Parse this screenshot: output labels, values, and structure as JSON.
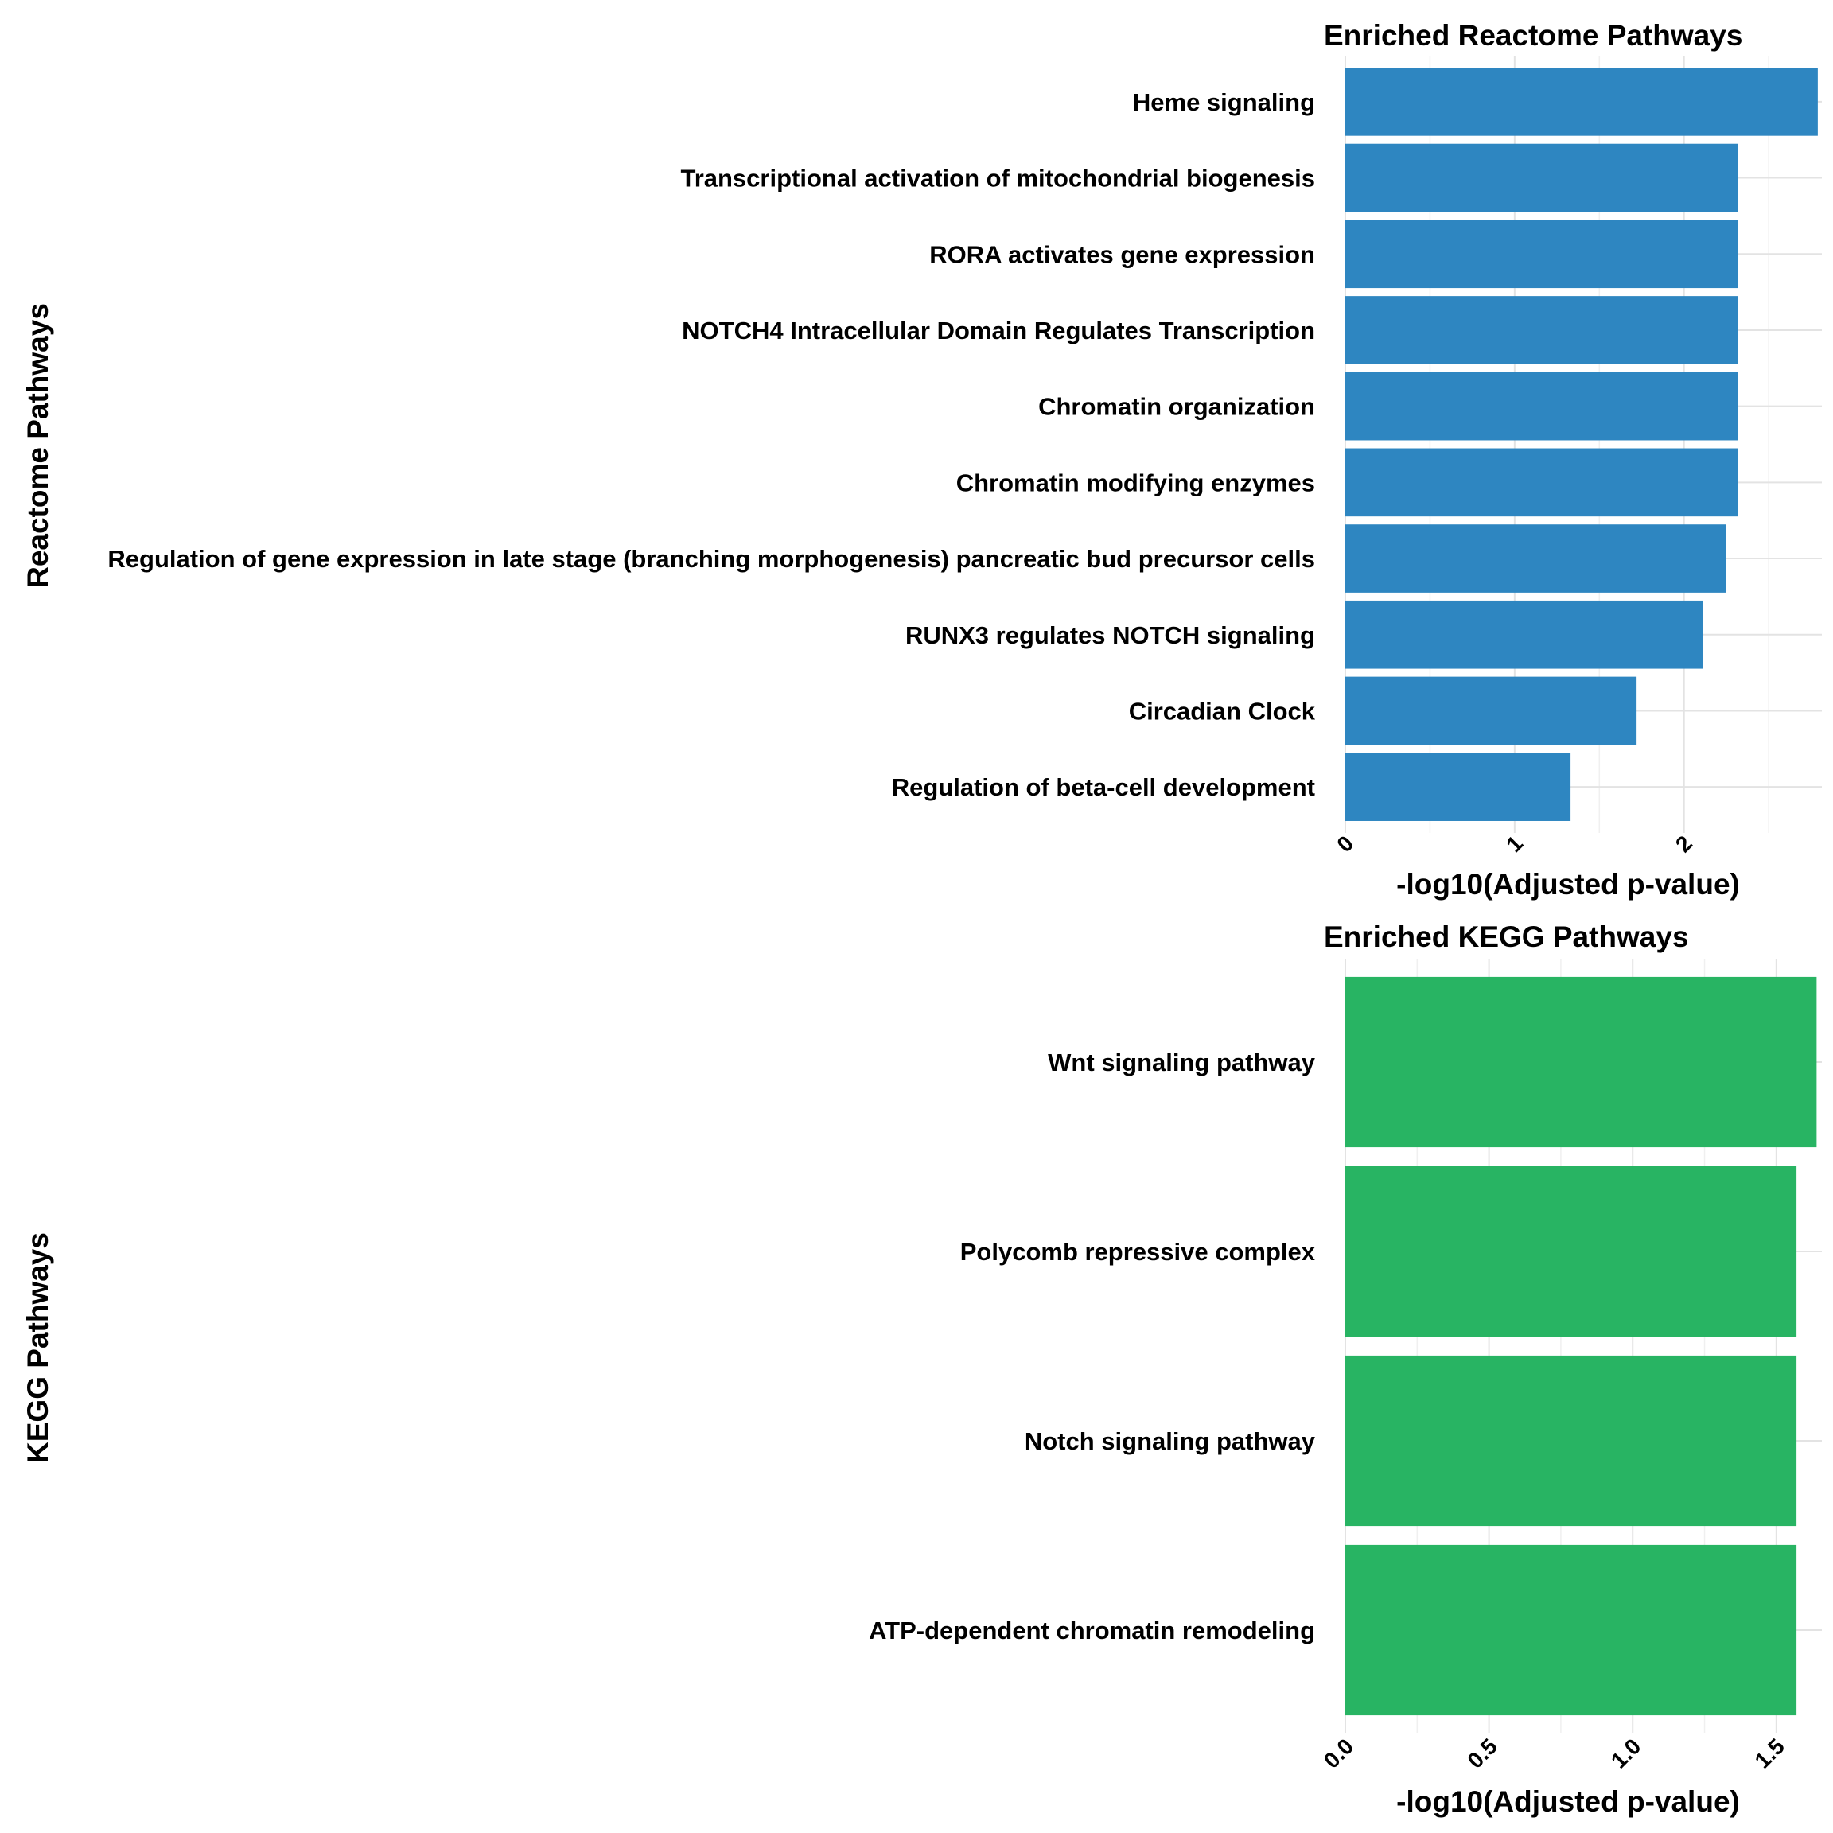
{
  "chart_data": [
    {
      "type": "bar",
      "orientation": "horizontal",
      "title": "Enriched Reactome Pathways",
      "xlabel": "-log10(Adjusted p-value)",
      "ylabel": "Reactome Pathways",
      "color": "#2E86C1",
      "xlim": [
        0,
        2.8
      ],
      "xticks": [
        0,
        1,
        2
      ],
      "xtick_labels": [
        "0",
        "1",
        "2"
      ],
      "grid": true,
      "categories": [
        "Heme signaling",
        "Transcriptional activation of mitochondrial biogenesis",
        "RORA activates gene expression",
        "NOTCH4 Intracellular Domain Regulates Transcription",
        "Chromatin organization",
        "Chromatin modifying enzymes",
        "Regulation of gene expression in late stage (branching morphogenesis) pancreatic bud precursor cells",
        "RUNX3 regulates NOTCH signaling",
        "Circadian Clock",
        "Regulation of beta-cell development"
      ],
      "values": [
        2.79,
        2.32,
        2.32,
        2.32,
        2.32,
        2.32,
        2.25,
        2.11,
        1.72,
        1.33
      ]
    },
    {
      "type": "bar",
      "orientation": "horizontal",
      "title": "Enriched KEGG Pathways",
      "xlabel": "-log10(Adjusted p-value)",
      "ylabel": "KEGG Pathways",
      "color": "#28B463",
      "xlim": [
        0,
        1.65
      ],
      "xticks": [
        0,
        0.5,
        1.0,
        1.5
      ],
      "xtick_labels": [
        "0.0",
        "0.5",
        "1.0",
        "1.5"
      ],
      "grid": true,
      "categories": [
        "Wnt signaling pathway",
        "Polycomb repressive complex",
        "Notch signaling pathway",
        "ATP-dependent chromatin remodeling"
      ],
      "values": [
        1.64,
        1.57,
        1.57,
        1.57
      ]
    }
  ]
}
